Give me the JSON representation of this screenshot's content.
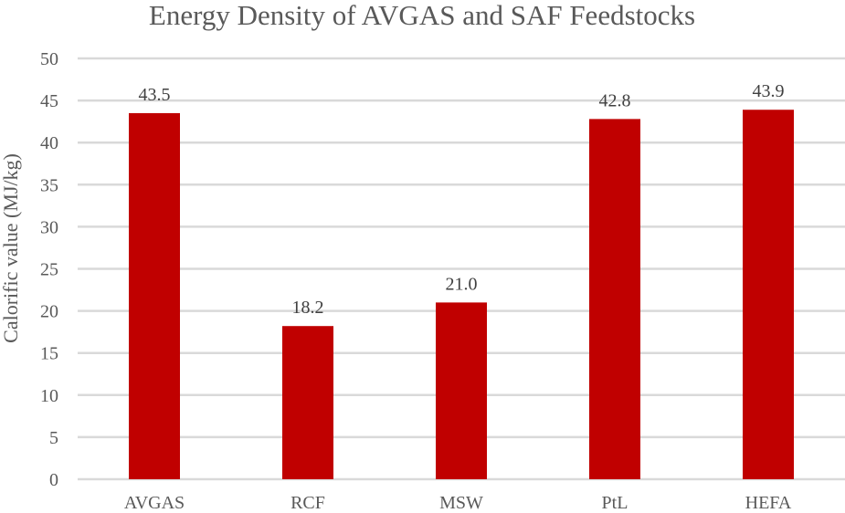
{
  "chart_data": {
    "type": "bar",
    "title": "Energy Density of AVGAS and SAF Feedstocks",
    "xlabel": "",
    "ylabel": "Calorific value (MJ/kg)",
    "categories": [
      "AVGAS",
      "RCF",
      "MSW",
      "PtL",
      "HEFA"
    ],
    "values": [
      43.5,
      18.2,
      21.0,
      42.8,
      43.9
    ],
    "data_labels": [
      "43.5",
      "18.2",
      "21.0",
      "42.8",
      "43.9"
    ],
    "ylim": [
      0,
      50
    ],
    "yticks": [
      0,
      5,
      10,
      15,
      20,
      25,
      30,
      35,
      40,
      45,
      50
    ],
    "grid": true,
    "legend": "none",
    "bar_color": "#c00000"
  }
}
